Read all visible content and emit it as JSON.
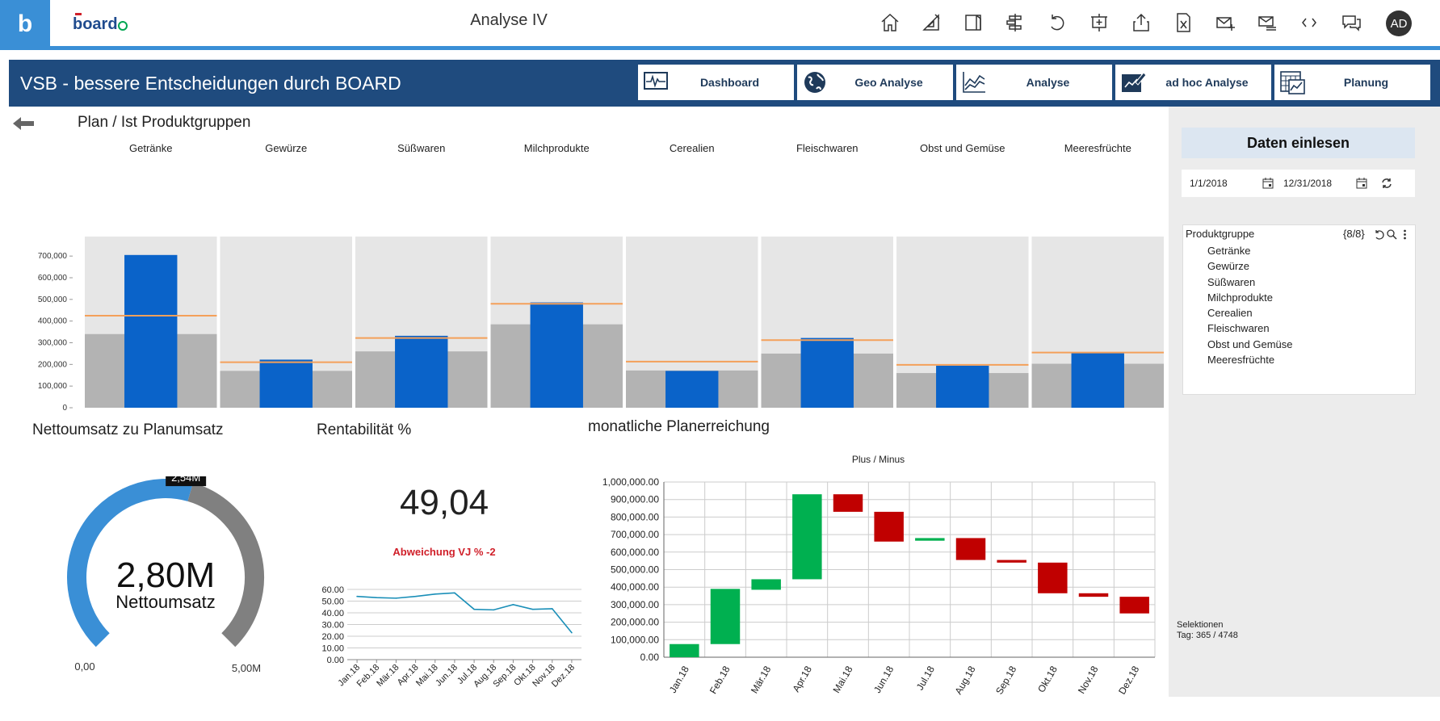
{
  "topbar": {
    "logo_text": "board",
    "tile_letter": "b",
    "title": "Analyse IV",
    "avatar_initials": "AD",
    "icons": [
      "home-icon",
      "edit-layout-icon",
      "panel-icon",
      "align-icon",
      "undo-icon",
      "presentation-icon",
      "share-icon",
      "excel-icon",
      "mail-add-icon",
      "mail-list-icon",
      "code-icon",
      "comments-icon"
    ]
  },
  "banner": {
    "title": "VSB - bessere Entscheidungen durch BOARD",
    "tabs": [
      {
        "label": "Dashboard",
        "icon": "monitor-pulse-icon"
      },
      {
        "label": "Geo Analyse",
        "icon": "globe-icon"
      },
      {
        "label": "Analyse",
        "icon": "line-chart-icon"
      },
      {
        "label": "ad hoc Analyse",
        "icon": "pen-chart-icon"
      },
      {
        "label": "Planung",
        "icon": "calendar-chart-icon"
      }
    ]
  },
  "plan_ist": {
    "title": "Plan / Ist Produktgruppen",
    "categories": [
      "Getränke",
      "Gewürze",
      "Süßwaren",
      "Milchprodukte",
      "Cerealien",
      "Fleischwaren",
      "Obst und Gemüse",
      "Meeresfrüchte"
    ]
  },
  "right_panel": {
    "load_button": "Daten einlesen",
    "date_from": "1/1/2018",
    "date_to": "12/31/2018",
    "selector_title": "Produktgruppe",
    "selector_count": "{8/8}",
    "selector_items": [
      "Getränke",
      "Gewürze",
      "Süßwaren",
      "Milchprodukte",
      "Cerealien",
      "Fleischwaren",
      "Obst und Gemüse",
      "Meeresfrüchte"
    ],
    "selinfo_line1": "Selektionen",
    "selinfo_line2": "Tag: 365 / 4748"
  },
  "netto": {
    "title": "Nettoumsatz zu Planumsatz",
    "value": "2,80M",
    "label": "Nettoumsatz",
    "marker": "2,54M",
    "min": "0,00",
    "max": "5,00M",
    "fill_fraction": 0.56,
    "marker_fraction": 0.508,
    "fill_color": "#3a8fd6",
    "rest_color": "#808080"
  },
  "rent": {
    "title": "Rentabilität %",
    "value": "49,04",
    "deviation": "Abweichung VJ % -2",
    "deviation_color": "#d0202a"
  },
  "monthly": {
    "title": "monatliche Planerreichung",
    "subtitle": "Plus / Minus"
  },
  "chart_data": [
    {
      "type": "bar",
      "id": "plan-ist",
      "title": "Plan / Ist Produktgruppen",
      "categories": [
        "Getränke",
        "Gewürze",
        "Süßwaren",
        "Milchprodukte",
        "Cerealien",
        "Fleischwaren",
        "Obst und Gemüse",
        "Meeresfrüchte"
      ],
      "series": [
        {
          "values": [
            705000,
            222000,
            332000,
            486000,
            170000,
            322000,
            194000,
            252000
          ],
          "color": "#0a63c9"
        },
        {
          "values": [
            340000,
            170000,
            260000,
            385000,
            172000,
            250000,
            160000,
            203000
          ],
          "color": "#b3b3b3"
        },
        {
          "values": [
            425000,
            210000,
            322000,
            480000,
            213000,
            312000,
            198000,
            255000
          ],
          "color": "#f4a05a"
        }
      ],
      "background_max": 700000,
      "ylim": [
        0,
        790000
      ],
      "yticks": [
        0,
        100000,
        200000,
        300000,
        400000,
        500000,
        600000,
        700000
      ],
      "ytick_labels": [
        "0",
        "100,000",
        "200,000",
        "300,000",
        "400,000",
        "500,000",
        "600,000",
        "700,000"
      ]
    },
    {
      "type": "line",
      "id": "rentabilitaet",
      "categories": [
        "Jan.18",
        "Feb.18",
        "Mär.18",
        "Apr.18",
        "Mai.18",
        "Jun.18",
        "Jul.18",
        "Aug.18",
        "Sep.18",
        "Okt.18",
        "Nov.18",
        "Dez.18"
      ],
      "series": [
        {
          "values": [
            54,
            53,
            52.5,
            54,
            56,
            57,
            43,
            42.5,
            47,
            43,
            43.5,
            23
          ],
          "color": "#1a8fb8"
        }
      ],
      "ylim": [
        0,
        60
      ],
      "yticks": [
        0,
        10,
        20,
        30,
        40,
        50,
        60
      ],
      "ytick_labels": [
        "0.00",
        "10.00",
        "20.00",
        "30.00",
        "40.00",
        "50.00",
        "60.00"
      ]
    },
    {
      "type": "bar",
      "subtype": "waterfall",
      "id": "planerreichung",
      "title": "Plus / Minus",
      "categories": [
        "Jan.18",
        "Feb.18",
        "Mär.18",
        "Apr.18",
        "Mai.18",
        "Jun.18",
        "Jul.18",
        "Aug.18",
        "Sep.18",
        "Okt.18",
        "Nov.18",
        "Dez.18"
      ],
      "low": [
        0,
        75000,
        385000,
        445000,
        830000,
        660000,
        665000,
        555000,
        540000,
        365000,
        345000,
        250000
      ],
      "high": [
        75000,
        390000,
        445000,
        930000,
        930000,
        830000,
        680000,
        680000,
        555000,
        540000,
        365000,
        345000
      ],
      "direction": [
        "plus",
        "plus",
        "plus",
        "plus",
        "minus",
        "minus",
        "plus",
        "minus",
        "minus",
        "minus",
        "minus",
        "minus"
      ],
      "colors": {
        "plus": "#00b050",
        "minus": "#c00000"
      },
      "ylim": [
        0,
        1000000
      ],
      "yticks": [
        0,
        100000,
        200000,
        300000,
        400000,
        500000,
        600000,
        700000,
        800000,
        900000,
        1000000
      ],
      "ytick_labels": [
        "0.00",
        "100,000.00",
        "200,000.00",
        "300,000.00",
        "400,000.00",
        "500,000.00",
        "600,000.00",
        "700,000.00",
        "800,000.00",
        "900,000.00",
        "1,000,000.00"
      ]
    }
  ]
}
